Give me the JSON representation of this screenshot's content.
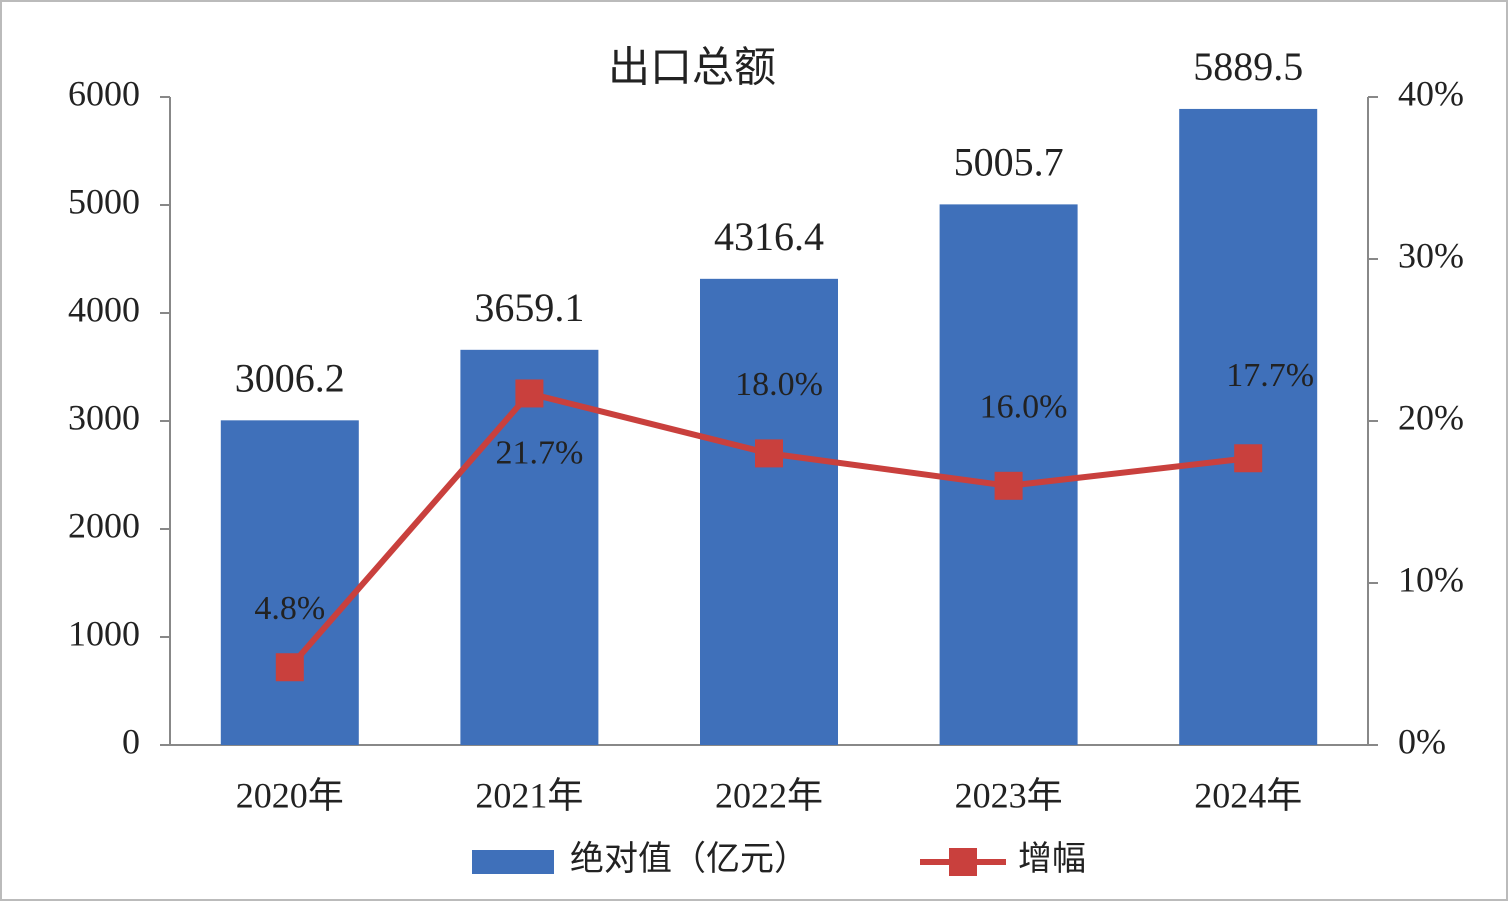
{
  "chart_data": {
    "type": "bar_line",
    "title": "出口总额",
    "categories": [
      "2020年",
      "2021年",
      "2022年",
      "2023年",
      "2024年"
    ],
    "series": [
      {
        "name": "绝对值（亿元）",
        "color": "#3f70ba",
        "type": "bar",
        "values": [
          3006.2,
          3659.1,
          4316.4,
          5005.7,
          5889.5
        ]
      },
      {
        "name": "增幅",
        "color": "#c9403d",
        "type": "line",
        "axis": "y2",
        "values": [
          4.8,
          21.7,
          18.0,
          16.0,
          17.7
        ],
        "value_labels": [
          "4.8%",
          "21.7%",
          "18.0%",
          "16.0%",
          "17.7%"
        ]
      }
    ],
    "ylim": [
      0,
      6000
    ],
    "yticks": [
      0,
      1000,
      2000,
      3000,
      4000,
      5000,
      6000
    ],
    "y2lim": [
      0,
      40
    ],
    "y2ticks": [
      {
        "value": 0,
        "label": "0%"
      },
      {
        "value": 10,
        "label": "10%"
      },
      {
        "value": 20,
        "label": "20%"
      },
      {
        "value": 30,
        "label": "30%"
      },
      {
        "value": 40,
        "label": "40%"
      }
    ],
    "legend": "bottom"
  }
}
